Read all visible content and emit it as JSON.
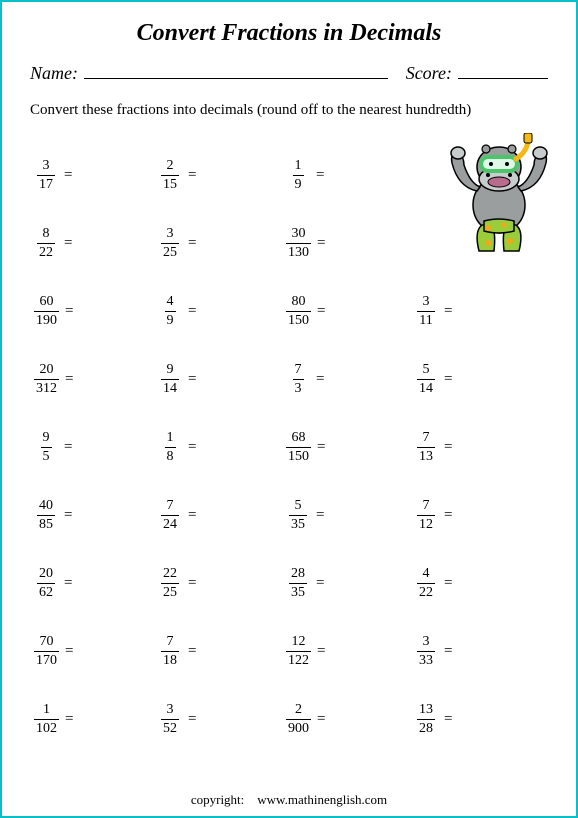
{
  "title": "Convert Fractions in Decimals",
  "name_label": "Name:",
  "score_label": "Score:",
  "instruction": "Convert these fractions into decimals (round off to the nearest hundredth)",
  "copyright_label": "copyright:",
  "copyright_site": "www.mathinenglish.com",
  "border_color": "#08c0c8",
  "hippo": {
    "body": "#9b9e9e",
    "snout": "#c7cccc",
    "shorts": "#9bcc3a",
    "spots": "#f2a81a",
    "snorkel_tube": "#f5b915",
    "snorkel_mask": "#4cc56a",
    "snorkel_glass": "#dff7e8",
    "mouth": "#b96b8e"
  },
  "rows": [
    [
      {
        "n": "3",
        "d": "17"
      },
      {
        "n": "2",
        "d": "15"
      },
      {
        "n": "1",
        "d": "9"
      },
      null
    ],
    [
      {
        "n": "8",
        "d": "22"
      },
      {
        "n": "3",
        "d": "25"
      },
      {
        "n": "30",
        "d": "130"
      },
      null
    ],
    [
      {
        "n": "60",
        "d": "190"
      },
      {
        "n": "4",
        "d": "9"
      },
      {
        "n": "80",
        "d": "150"
      },
      {
        "n": "3",
        "d": "11"
      }
    ],
    [
      {
        "n": "20",
        "d": "312"
      },
      {
        "n": "9",
        "d": "14"
      },
      {
        "n": "7",
        "d": "3"
      },
      {
        "n": "5",
        "d": "14"
      }
    ],
    [
      {
        "n": "9",
        "d": "5"
      },
      {
        "n": "1",
        "d": "8"
      },
      {
        "n": "68",
        "d": "150"
      },
      {
        "n": "7",
        "d": "13"
      }
    ],
    [
      {
        "n": "40",
        "d": "85"
      },
      {
        "n": "7",
        "d": "24"
      },
      {
        "n": "5",
        "d": "35"
      },
      {
        "n": "7",
        "d": "12"
      }
    ],
    [
      {
        "n": "20",
        "d": "62"
      },
      {
        "n": "22",
        "d": "25"
      },
      {
        "n": "28",
        "d": "35"
      },
      {
        "n": "4",
        "d": "22"
      }
    ],
    [
      {
        "n": "70",
        "d": "170"
      },
      {
        "n": "7",
        "d": "18"
      },
      {
        "n": "12",
        "d": "122"
      },
      {
        "n": "3",
        "d": "33"
      }
    ],
    [
      {
        "n": "1",
        "d": "102"
      },
      {
        "n": "3",
        "d": "52"
      },
      {
        "n": "2",
        "d": "900"
      },
      {
        "n": "13",
        "d": "28"
      }
    ]
  ]
}
